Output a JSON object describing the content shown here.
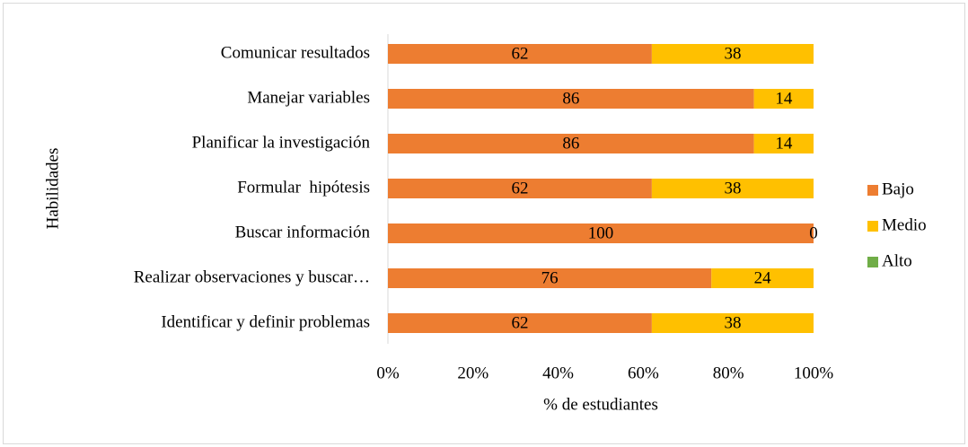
{
  "chart_data": {
    "type": "stacked_bar_horizontal",
    "categories": [
      "Comunicar resultados",
      "Manejar variables",
      "Planificar la investigación",
      "Formular  hipótesis",
      "Buscar información",
      "Realizar observaciones y buscar…",
      "Identificar y definir problemas"
    ],
    "series": [
      {
        "name": "Bajo",
        "color": "#ED7D31",
        "values": [
          62,
          86,
          86,
          62,
          100,
          76,
          62
        ]
      },
      {
        "name": "Medio",
        "color": "#FFC000",
        "values": [
          38,
          14,
          14,
          38,
          0,
          24,
          38
        ]
      },
      {
        "name": "Alto",
        "color": "#70AD47",
        "values": [
          null,
          null,
          null,
          null,
          null,
          null,
          null
        ]
      }
    ],
    "xlim": [
      0,
      100
    ],
    "xticks": [
      {
        "value": 0,
        "label": "0%"
      },
      {
        "value": 20,
        "label": "20%"
      },
      {
        "value": 40,
        "label": "40%"
      },
      {
        "value": 60,
        "label": "60%"
      },
      {
        "value": 80,
        "label": "80%"
      },
      {
        "value": 100,
        "label": "100%"
      }
    ],
    "x_label": "% de estudiantes",
    "y_label": "Habilidades",
    "legend": "right"
  }
}
